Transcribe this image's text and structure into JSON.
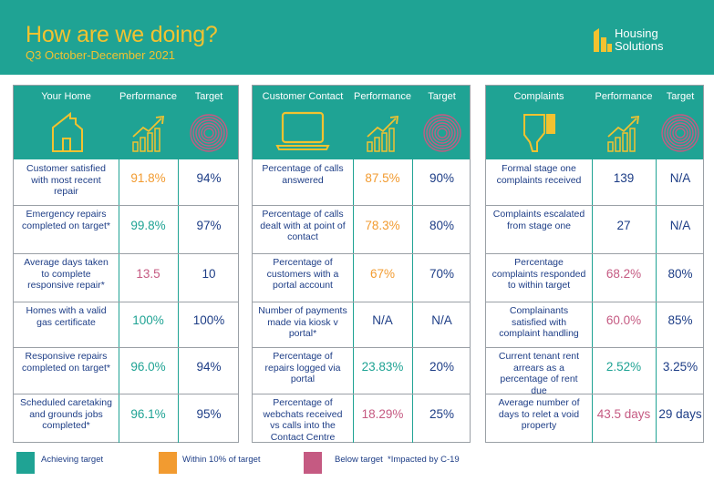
{
  "header": {
    "title": "How are we doing?",
    "subtitle": "Q3 October-December 2021",
    "logo_line1": "Housing",
    "logo_line2": "Solutions",
    "logo_icon": "house-bars-logo-icon"
  },
  "colors": {
    "teal": "#1fa394",
    "yellow": "#f2c230",
    "orange": "#f29b30",
    "pink": "#c55a82",
    "navy": "#1d3d86"
  },
  "panels": [
    {
      "heading": "Your Home",
      "icon": "house-icon",
      "rows": [
        {
          "metric": "Customer satisfied with most recent repair",
          "performance": "91.8%",
          "status": "orange",
          "target": "94%"
        },
        {
          "metric": "Emergency repairs completed on target*",
          "performance": "99.8%",
          "status": "green",
          "target": "97%"
        },
        {
          "metric": "Average days taken to complete responsive repair*",
          "performance": "13.5",
          "status": "pink",
          "target": "10"
        },
        {
          "metric": "Homes with a valid gas certificate",
          "performance": "100%",
          "status": "green",
          "target": "100%"
        },
        {
          "metric": "Responsive repairs completed on target*",
          "performance": "96.0%",
          "status": "green",
          "target": "94%"
        },
        {
          "metric": "Scheduled caretaking and grounds jobs completed*",
          "performance": "96.1%",
          "status": "green",
          "target": "95%"
        }
      ]
    },
    {
      "heading": "Customer Contact",
      "icon": "laptop-icon",
      "rows": [
        {
          "metric": "Percentage of calls answered",
          "performance": "87.5%",
          "status": "orange",
          "target": "90%"
        },
        {
          "metric": "Percentage of calls dealt with at point of contact",
          "performance": "78.3%",
          "status": "orange",
          "target": "80%"
        },
        {
          "metric": "Percentage of customers with a portal account",
          "performance": "67%",
          "status": "orange",
          "target": "70%"
        },
        {
          "metric": "Number of payments made via kiosk v portal*",
          "performance": "N/A",
          "status": "navy",
          "target": "N/A"
        },
        {
          "metric": "Percentage of repairs logged via portal",
          "performance": "23.83%",
          "status": "green",
          "target": "20%"
        },
        {
          "metric": "Percentage of webchats received vs calls into the Contact Centre",
          "performance": "18.29%",
          "status": "pink",
          "target": "25%"
        }
      ]
    },
    {
      "heading": "Complaints",
      "icon": "thumbs-down-icon",
      "rows": [
        {
          "metric": "Formal stage one complaints received",
          "performance": "139",
          "status": "navy",
          "target": "N/A"
        },
        {
          "metric": "Complaints escalated from stage one",
          "performance": "27",
          "status": "navy",
          "target": "N/A"
        },
        {
          "metric": "Percentage complaints responded to within target",
          "performance": "68.2%",
          "status": "pink",
          "target": "80%"
        },
        {
          "metric": "Complainants satisfied with complaint handling",
          "performance": "60.0%",
          "status": "pink",
          "target": "85%"
        },
        {
          "metric": "Current tenant rent arrears as a percentage of rent due",
          "performance": "2.52%",
          "status": "green",
          "target": "3.25%"
        },
        {
          "metric": "Average number of days to relet a void property",
          "performance": "43.5 days",
          "status": "pink",
          "target": "29 days"
        }
      ]
    }
  ],
  "columns": {
    "performance": "Performance",
    "target": "Target",
    "performance_icon": "bar-chart-arrow-icon",
    "target_icon": "target-rings-icon"
  },
  "legend": {
    "achieving": "Achieving target",
    "within": "Within 10% of target",
    "below": "Below target",
    "note": "*Impacted by C-19"
  }
}
